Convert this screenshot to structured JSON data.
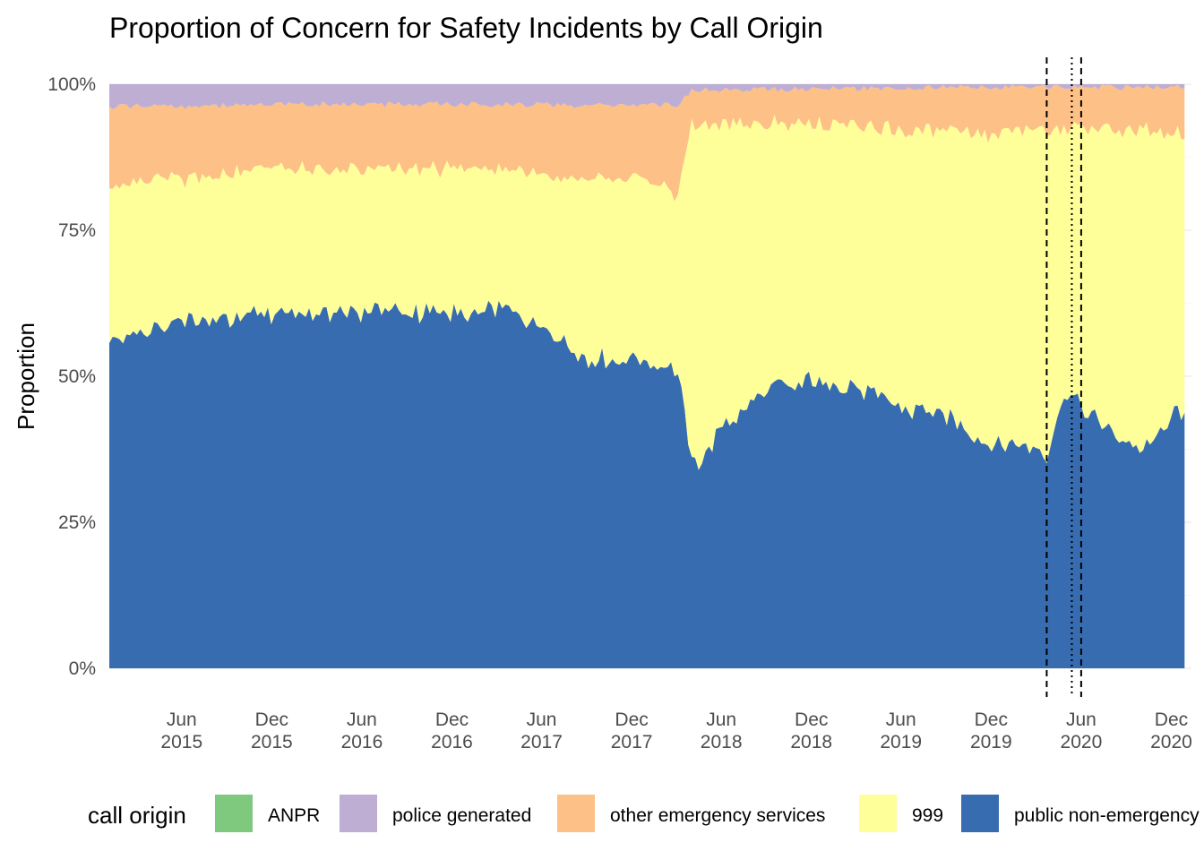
{
  "chart_data": {
    "type": "area",
    "stacked": "fill",
    "title": "Proportion of Concern for Safety Incidents by Call Origin",
    "xlabel": "",
    "ylabel": "Proportion",
    "ylim": [
      0,
      1
    ],
    "y_ticks": [
      0,
      0.25,
      0.5,
      0.75,
      1
    ],
    "y_tick_labels": [
      "0%",
      "25%",
      "50%",
      "75%",
      "100%"
    ],
    "xlim": [
      "2015-01-05",
      "2021-01-11"
    ],
    "x_ticks": [
      "2015-06-01",
      "2015-12-01",
      "2016-06-01",
      "2016-12-01",
      "2017-06-01",
      "2017-12-01",
      "2018-06-01",
      "2018-12-01",
      "2019-06-01",
      "2019-12-01",
      "2020-06-01",
      "2020-12-01"
    ],
    "x_tick_labels": [
      [
        "Jun",
        "2015"
      ],
      [
        "Dec",
        "2015"
      ],
      [
        "Jun",
        "2016"
      ],
      [
        "Dec",
        "2016"
      ],
      [
        "Jun",
        "2017"
      ],
      [
        "Dec",
        "2017"
      ],
      [
        "Jun",
        "2018"
      ],
      [
        "Dec",
        "2018"
      ],
      [
        "Jun",
        "2019"
      ],
      [
        "Dec",
        "2019"
      ],
      [
        "Jun",
        "2020"
      ],
      [
        "Dec",
        "2020"
      ]
    ],
    "grid": true,
    "legend": {
      "title": "call origin",
      "position": "bottom"
    },
    "vlines": [
      {
        "x": "2020-03-23",
        "style": "dashed"
      },
      {
        "x": "2020-05-13",
        "style": "dotted"
      },
      {
        "x": "2020-06-01",
        "style": "dashed"
      }
    ],
    "series": [
      {
        "name": "ANPR",
        "color": "#7fc97f",
        "points": [
          [
            "2015-01-05",
            0.0
          ],
          [
            "2020-12-28",
            0.0
          ]
        ]
      },
      {
        "name": "police generated",
        "color": "#beaed4",
        "points": [
          [
            "2015-01-05",
            0.04
          ],
          [
            "2015-12-07",
            0.035
          ],
          [
            "2016-12-05",
            0.035
          ],
          [
            "2017-12-04",
            0.035
          ],
          [
            "2018-03-05",
            0.035
          ],
          [
            "2018-04-02",
            0.01
          ],
          [
            "2018-12-03",
            0.008
          ],
          [
            "2019-12-02",
            0.005
          ],
          [
            "2020-12-28",
            0.005
          ]
        ]
      },
      {
        "name": "other emergency services",
        "color": "#fdc086",
        "points": [
          [
            "2015-01-05",
            0.14
          ],
          [
            "2015-12-07",
            0.11
          ],
          [
            "2016-12-05",
            0.11
          ],
          [
            "2017-12-04",
            0.12
          ],
          [
            "2018-03-05",
            0.15
          ],
          [
            "2018-04-02",
            0.06
          ],
          [
            "2018-12-03",
            0.06
          ],
          [
            "2019-06-03",
            0.07
          ],
          [
            "2019-12-02",
            0.08
          ],
          [
            "2020-06-01",
            0.07
          ],
          [
            "2020-12-28",
            0.08
          ]
        ]
      },
      {
        "name": "999",
        "color": "#ffff99",
        "points": [
          [
            "2015-01-05",
            0.27
          ],
          [
            "2015-02-02",
            0.27
          ],
          [
            "2015-06-01",
            0.25
          ],
          [
            "2015-12-07",
            0.25
          ],
          [
            "2016-06-06",
            0.24
          ],
          [
            "2016-12-05",
            0.25
          ],
          [
            "2017-03-06",
            0.24
          ],
          [
            "2017-06-05",
            0.26
          ],
          [
            "2017-09-04",
            0.31
          ],
          [
            "2017-12-04",
            0.31
          ],
          [
            "2018-03-05",
            0.3
          ],
          [
            "2018-04-02",
            0.59
          ],
          [
            "2018-05-07",
            0.56
          ],
          [
            "2018-06-04",
            0.52
          ],
          [
            "2018-09-03",
            0.46
          ],
          [
            "2018-12-03",
            0.44
          ],
          [
            "2019-03-04",
            0.45
          ],
          [
            "2019-06-04",
            0.47
          ],
          [
            "2019-09-02",
            0.48
          ],
          [
            "2019-12-02",
            0.53
          ],
          [
            "2020-02-03",
            0.54
          ],
          [
            "2020-03-23",
            0.54
          ],
          [
            "2020-05-04",
            0.44
          ],
          [
            "2020-06-01",
            0.48
          ],
          [
            "2020-08-03",
            0.51
          ],
          [
            "2020-10-05",
            0.54
          ],
          [
            "2020-12-28",
            0.46
          ]
        ]
      },
      {
        "name": "public non-emergency",
        "color": "#386cb0",
        "points": [
          [
            "2015-01-05",
            0.55
          ],
          [
            "2015-02-02",
            0.59
          ],
          [
            "2015-06-01",
            0.6
          ],
          [
            "2015-12-07",
            0.61
          ],
          [
            "2016-06-06",
            0.62
          ],
          [
            "2016-12-05",
            0.61
          ],
          [
            "2017-03-06",
            0.62
          ],
          [
            "2017-06-05",
            0.57
          ],
          [
            "2017-09-04",
            0.52
          ],
          [
            "2017-12-04",
            0.53
          ],
          [
            "2018-03-05",
            0.51
          ],
          [
            "2018-04-02",
            0.35
          ],
          [
            "2018-05-07",
            0.38
          ],
          [
            "2018-06-04",
            0.42
          ],
          [
            "2018-09-03",
            0.48
          ],
          [
            "2018-12-03",
            0.49
          ],
          [
            "2019-03-04",
            0.48
          ],
          [
            "2019-06-04",
            0.45
          ],
          [
            "2019-09-02",
            0.42
          ],
          [
            "2019-12-02",
            0.38
          ],
          [
            "2020-02-03",
            0.38
          ],
          [
            "2020-03-23",
            0.37
          ],
          [
            "2020-05-04",
            0.48
          ],
          [
            "2020-06-01",
            0.44
          ],
          [
            "2020-08-03",
            0.4
          ],
          [
            "2020-10-05",
            0.37
          ],
          [
            "2020-12-28",
            0.45
          ]
        ]
      }
    ]
  }
}
